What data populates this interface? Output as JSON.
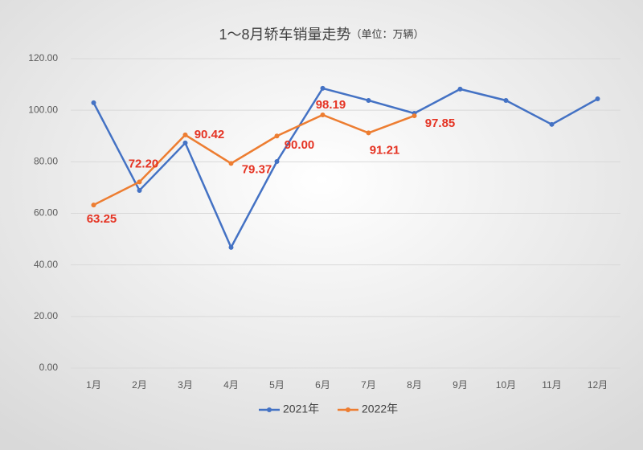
{
  "chart_data": {
    "type": "line",
    "title": "1～8月轿车销量走势",
    "subtitle": "（单位：万辆）",
    "categories": [
      "1月",
      "2月",
      "3月",
      "4月",
      "5月",
      "6月",
      "7月",
      "8月",
      "9月",
      "10月",
      "11月",
      "12月"
    ],
    "series": [
      {
        "name": "2021年",
        "color": "#4472c4",
        "values": [
          102.9,
          68.9,
          87.3,
          46.8,
          80.1,
          108.5,
          103.8,
          98.8,
          108.2,
          103.8,
          94.5,
          104.4
        ]
      },
      {
        "name": "2022年",
        "color": "#ed7d31",
        "values": [
          63.25,
          72.2,
          90.42,
          79.37,
          90,
          98.19,
          91.21,
          97.85,
          null,
          null,
          null,
          null
        ],
        "value_labels": [
          "63.25",
          "72.20",
          "90.42",
          "79.37",
          "90.00",
          "98.19",
          "91.21",
          "97.85",
          null,
          null,
          null,
          null
        ],
        "label_color": "#e53323"
      }
    ],
    "ylim": [
      0,
      120
    ],
    "yticks": [
      {
        "value": 0,
        "label": "0.00"
      },
      {
        "value": 20,
        "label": "20.00"
      },
      {
        "value": 40,
        "label": "40.00"
      },
      {
        "value": 60,
        "label": "60.00"
      },
      {
        "value": 80,
        "label": "80.00"
      },
      {
        "value": 100,
        "label": "100.00"
      },
      {
        "value": 120,
        "label": "120.00"
      }
    ],
    "grid": true,
    "legend": "bottom"
  }
}
